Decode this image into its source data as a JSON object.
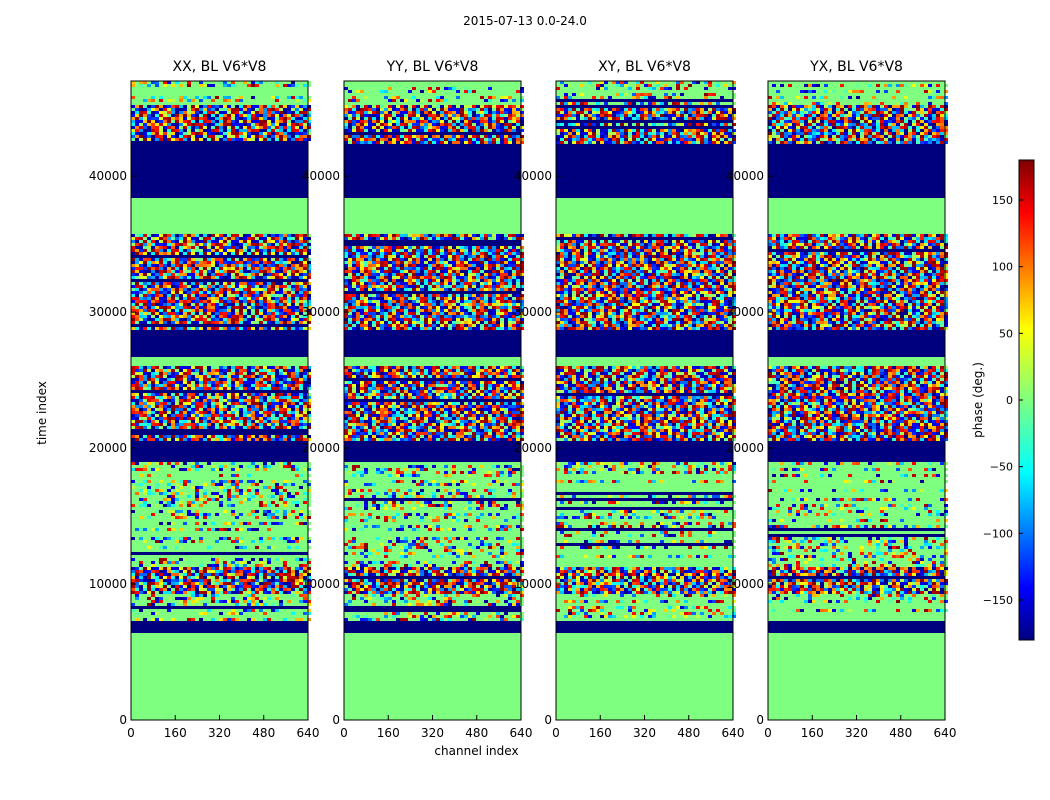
{
  "chart_data": {
    "type": "heatmap",
    "title": "2015-07-13 0.0-24.0",
    "xlabel": "channel index",
    "ylabel": "time index",
    "xlim": [
      0,
      640
    ],
    "ylim": [
      0,
      47000
    ],
    "x_ticks": [
      0,
      160,
      320,
      480,
      640
    ],
    "y_ticks": [
      0,
      10000,
      20000,
      30000,
      40000
    ],
    "colorbar": {
      "label": "phase (deg.)",
      "range": [
        -180,
        180
      ],
      "ticks": [
        -150,
        -100,
        -50,
        0,
        50,
        100,
        150
      ],
      "colormap": "jet"
    },
    "panels": [
      {
        "title": "XX, BL V6*V8"
      },
      {
        "title": "YY, BL V6*V8"
      },
      {
        "title": "XY, BL V6*V8"
      },
      {
        "title": "YX, BL V6*V8"
      }
    ],
    "bands": [
      {
        "y0": 0,
        "y1": 6500,
        "kind": "zero"
      },
      {
        "y0": 6500,
        "y1": 7300,
        "kind": "neg"
      },
      {
        "y0": 7300,
        "y1": 9200,
        "kind": "noise"
      },
      {
        "y0": 9200,
        "y1": 11200,
        "kind": "fringe"
      },
      {
        "y0": 11200,
        "y1": 15300,
        "kind": "noise"
      },
      {
        "y0": 15300,
        "y1": 19000,
        "kind": "noise"
      },
      {
        "y0": 19000,
        "y1": 20500,
        "kind": "neg"
      },
      {
        "y0": 20500,
        "y1": 26000,
        "kind": "fringe"
      },
      {
        "y0": 26000,
        "y1": 26800,
        "kind": "zero"
      },
      {
        "y0": 26800,
        "y1": 28700,
        "kind": "neg"
      },
      {
        "y0": 28700,
        "y1": 35800,
        "kind": "fringe"
      },
      {
        "y0": 35800,
        "y1": 38500,
        "kind": "zero"
      },
      {
        "y0": 38500,
        "y1": 42300,
        "kind": "neg"
      },
      {
        "y0": 42300,
        "y1": 45200,
        "kind": "fringe"
      },
      {
        "y0": 45200,
        "y1": 47000,
        "kind": "noise"
      }
    ]
  }
}
